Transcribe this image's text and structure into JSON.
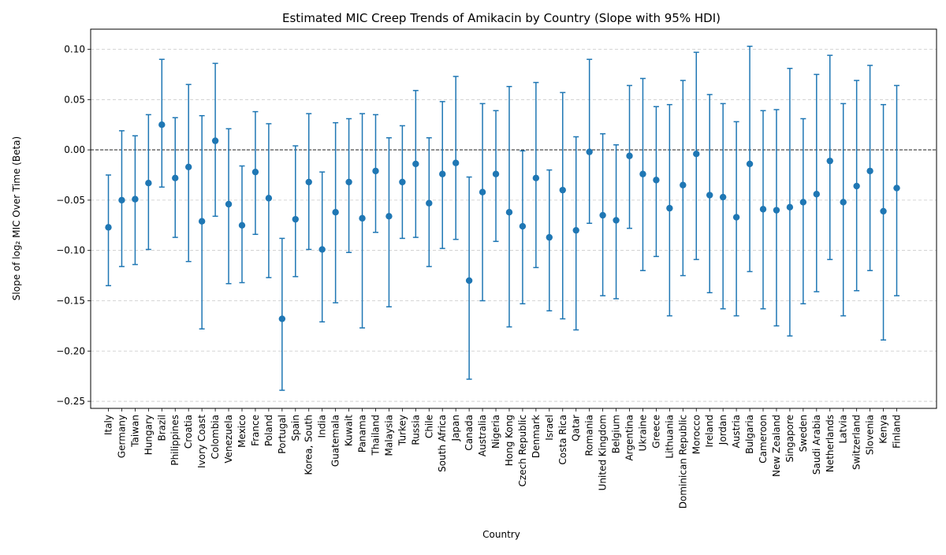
{
  "chart_data": {
    "type": "scatter",
    "title": "Estimated MIC Creep Trends of Amikacin by Country (Slope with 95% HDI)",
    "xlabel": "Country",
    "ylabel": "Slope of log₂ MIC Over Time (Beta)",
    "ylim": [
      -0.257,
      0.12
    ],
    "yticks": [
      0.1,
      0.05,
      0.0,
      -0.05,
      -0.1,
      -0.15,
      -0.2,
      -0.25
    ],
    "ytick_labels": [
      "0.10",
      "0.05",
      "0.00",
      "−0.05",
      "−0.10",
      "−0.15",
      "−0.20",
      "−0.25"
    ],
    "grid": "y dashed",
    "reference_line": 0,
    "color": "#1f77b4",
    "categories": [
      "Italy",
      "Germany",
      "Taiwan",
      "Hungary",
      "Brazil",
      "Philippines",
      "Croatia",
      "Ivory Coast",
      "Colombia",
      "Venezuela",
      "Mexico",
      "France",
      "Poland",
      "Portugal",
      "Spain",
      "Korea, South",
      "India",
      "Guatemala",
      "Kuwait",
      "Panama",
      "Thailand",
      "Malaysia",
      "Turkey",
      "Russia",
      "Chile",
      "South Africa",
      "Japan",
      "Canada",
      "Australia",
      "Nigeria",
      "Hong Kong",
      "Czech Republic",
      "Denmark",
      "Israel",
      "Costa Rica",
      "Qatar",
      "Romania",
      "United Kingdom",
      "Belgium",
      "Argentina",
      "Ukraine",
      "Greece",
      "Lithuania",
      "Dominican Republic",
      "Morocco",
      "Ireland",
      "Jordan",
      "Austria",
      "Bulgaria",
      "Cameroon",
      "New Zealand",
      "Singapore",
      "Sweden",
      "Saudi Arabia",
      "Netherlands",
      "Latvia",
      "Switzerland",
      "Slovenia",
      "Kenya",
      "Finland"
    ],
    "series": [
      {
        "values": [
          -0.077,
          -0.05,
          -0.049,
          -0.033,
          0.025,
          -0.028,
          -0.017,
          -0.071,
          0.009,
          -0.054,
          -0.075,
          -0.022,
          -0.048,
          -0.168,
          -0.069,
          -0.032,
          -0.099,
          -0.062,
          -0.032,
          -0.068,
          -0.021,
          -0.066,
          -0.032,
          -0.014,
          -0.053,
          -0.024,
          -0.013,
          -0.13,
          -0.042,
          -0.024,
          -0.062,
          -0.076,
          -0.028,
          -0.087,
          -0.04,
          -0.08,
          -0.002,
          -0.065,
          -0.07,
          -0.006,
          -0.024,
          -0.03,
          -0.058,
          -0.035,
          -0.004,
          -0.045,
          -0.047,
          -0.067,
          -0.014,
          -0.059,
          -0.06,
          -0.057,
          -0.052,
          -0.044,
          -0.011,
          -0.052,
          -0.036,
          -0.021,
          -0.061,
          -0.038
        ],
        "hdi_low": [
          -0.135,
          -0.116,
          -0.114,
          -0.099,
          -0.037,
          -0.087,
          -0.111,
          -0.178,
          -0.066,
          -0.133,
          -0.132,
          -0.084,
          -0.127,
          -0.239,
          -0.126,
          -0.099,
          -0.171,
          -0.152,
          -0.102,
          -0.177,
          -0.082,
          -0.156,
          -0.088,
          -0.087,
          -0.116,
          -0.098,
          -0.089,
          -0.228,
          -0.15,
          -0.091,
          -0.176,
          -0.153,
          -0.117,
          -0.16,
          -0.168,
          -0.179,
          -0.073,
          -0.145,
          -0.148,
          -0.078,
          -0.12,
          -0.106,
          -0.165,
          -0.125,
          -0.109,
          -0.142,
          -0.158,
          -0.165,
          -0.121,
          -0.158,
          -0.175,
          -0.185,
          -0.153,
          -0.141,
          -0.109,
          -0.165,
          -0.14,
          -0.12,
          -0.189,
          -0.145
        ],
        "hdi_high": [
          -0.025,
          0.019,
          0.014,
          0.035,
          0.09,
          0.032,
          0.065,
          0.034,
          0.086,
          0.021,
          -0.016,
          0.038,
          0.026,
          -0.088,
          0.004,
          0.036,
          -0.022,
          0.027,
          0.031,
          0.036,
          0.035,
          0.012,
          0.024,
          0.059,
          0.012,
          0.048,
          0.073,
          -0.027,
          0.046,
          0.039,
          0.063,
          -0.001,
          0.067,
          -0.02,
          0.057,
          0.013,
          0.09,
          0.016,
          0.005,
          0.064,
          0.071,
          0.043,
          0.045,
          0.069,
          0.097,
          0.055,
          0.046,
          0.028,
          0.103,
          0.039,
          0.04,
          0.081,
          0.031,
          0.075,
          0.094,
          0.046,
          0.069,
          0.084,
          0.045,
          0.064
        ]
      }
    ]
  }
}
